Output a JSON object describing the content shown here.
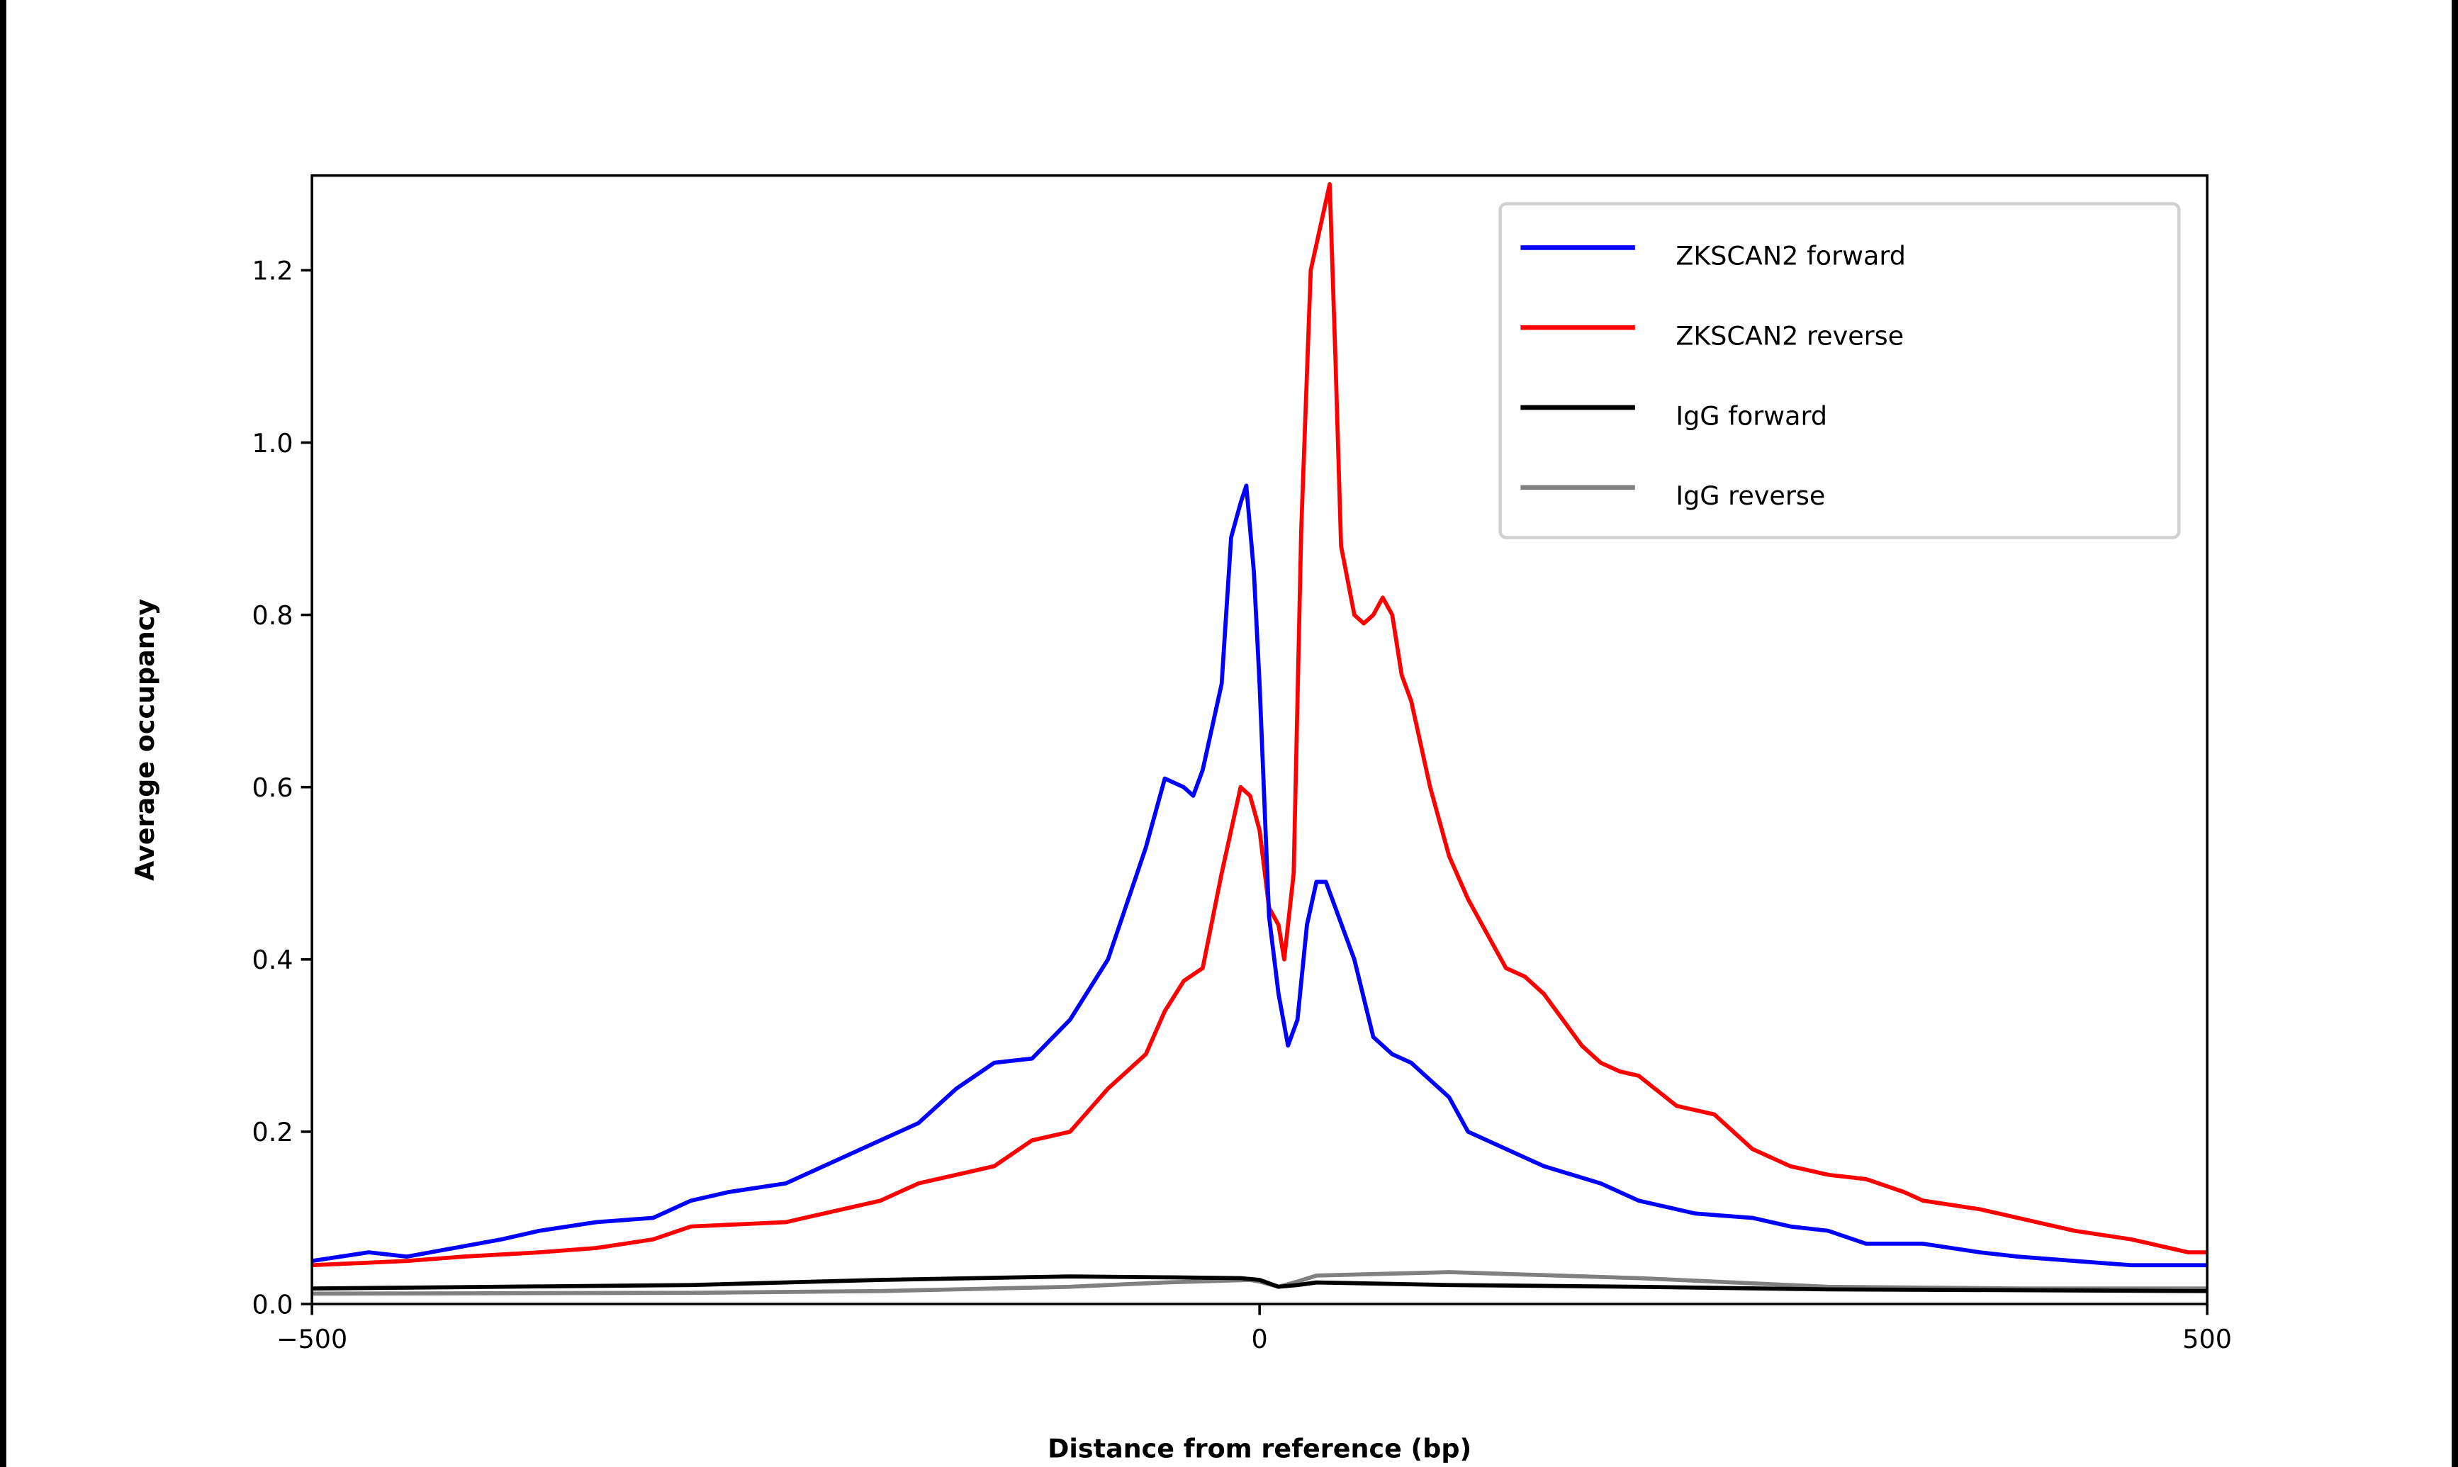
{
  "chart_data": {
    "type": "line",
    "title": "",
    "xlabel": "Distance from reference (bp)",
    "ylabel": "Average occupancy",
    "xlim": [
      -500,
      500
    ],
    "ylim": [
      0,
      1.31
    ],
    "xticks": [
      -500,
      0,
      500
    ],
    "xtick_labels": [
      "−500",
      "0",
      "500"
    ],
    "yticks": [
      0,
      0.2,
      0.4,
      0.6,
      0.8,
      1.0,
      1.2
    ],
    "ytick_labels": [
      "0.0",
      "0.2",
      "0.4",
      "0.6",
      "0.8",
      "1.0",
      "1.2"
    ],
    "grid": false,
    "legend_position": "top-right",
    "series": [
      {
        "name": "ZKSCAN2 forward",
        "color": "#0000ff",
        "x": [
          -500,
          -470,
          -450,
          -420,
          -400,
          -380,
          -350,
          -320,
          -300,
          -280,
          -250,
          -230,
          -200,
          -180,
          -160,
          -140,
          -120,
          -100,
          -80,
          -60,
          -50,
          -40,
          -35,
          -30,
          -20,
          -15,
          -10,
          -7,
          -3,
          0,
          5,
          10,
          15,
          20,
          25,
          30,
          35,
          40,
          50,
          60,
          70,
          80,
          100,
          110,
          130,
          150,
          180,
          200,
          230,
          260,
          280,
          300,
          320,
          350,
          380,
          400,
          430,
          460,
          500
        ],
        "y": [
          0.05,
          0.06,
          0.055,
          0.067,
          0.075,
          0.085,
          0.095,
          0.1,
          0.12,
          0.13,
          0.14,
          0.16,
          0.19,
          0.21,
          0.25,
          0.28,
          0.285,
          0.33,
          0.4,
          0.53,
          0.61,
          0.6,
          0.59,
          0.62,
          0.72,
          0.89,
          0.93,
          0.95,
          0.85,
          0.72,
          0.45,
          0.36,
          0.3,
          0.33,
          0.44,
          0.49,
          0.49,
          0.46,
          0.4,
          0.31,
          0.29,
          0.28,
          0.24,
          0.2,
          0.18,
          0.16,
          0.14,
          0.12,
          0.105,
          0.1,
          0.09,
          0.085,
          0.07,
          0.07,
          0.06,
          0.055,
          0.05,
          0.045,
          0.045
        ]
      },
      {
        "name": "ZKSCAN2 reverse",
        "color": "#ff0000",
        "x": [
          -500,
          -450,
          -420,
          -380,
          -350,
          -320,
          -300,
          -250,
          -220,
          -200,
          -180,
          -160,
          -140,
          -120,
          -100,
          -80,
          -60,
          -50,
          -40,
          -30,
          -20,
          -10,
          -5,
          0,
          5,
          10,
          13,
          18,
          22,
          27,
          32,
          37,
          40,
          43,
          50,
          55,
          60,
          65,
          70,
          75,
          80,
          90,
          100,
          110,
          120,
          130,
          140,
          150,
          160,
          170,
          180,
          190,
          200,
          220,
          240,
          260,
          280,
          300,
          320,
          340,
          350,
          380,
          400,
          430,
          460,
          490,
          500
        ],
        "y": [
          0.045,
          0.05,
          0.055,
          0.06,
          0.065,
          0.075,
          0.09,
          0.095,
          0.11,
          0.12,
          0.14,
          0.15,
          0.16,
          0.19,
          0.2,
          0.25,
          0.29,
          0.34,
          0.375,
          0.39,
          0.5,
          0.6,
          0.59,
          0.55,
          0.46,
          0.44,
          0.4,
          0.5,
          0.9,
          1.2,
          1.25,
          1.3,
          1.1,
          0.88,
          0.8,
          0.79,
          0.8,
          0.82,
          0.8,
          0.73,
          0.7,
          0.6,
          0.52,
          0.47,
          0.43,
          0.39,
          0.38,
          0.36,
          0.33,
          0.3,
          0.28,
          0.27,
          0.265,
          0.23,
          0.22,
          0.18,
          0.16,
          0.15,
          0.145,
          0.13,
          0.12,
          0.11,
          0.1,
          0.085,
          0.075,
          0.06,
          0.06
        ]
      },
      {
        "name": "IgG forward",
        "color": "#000000",
        "x": [
          -500,
          -300,
          -200,
          -100,
          -50,
          -10,
          0,
          10,
          20,
          30,
          100,
          200,
          300,
          400,
          500
        ],
        "y": [
          0.018,
          0.022,
          0.028,
          0.032,
          0.031,
          0.03,
          0.028,
          0.02,
          0.022,
          0.025,
          0.022,
          0.02,
          0.017,
          0.016,
          0.015
        ]
      },
      {
        "name": "IgG reverse",
        "color": "#808080",
        "x": [
          -500,
          -300,
          -200,
          -100,
          -50,
          -5,
          0,
          10,
          20,
          30,
          100,
          200,
          300,
          400,
          500
        ],
        "y": [
          0.012,
          0.013,
          0.015,
          0.02,
          0.025,
          0.028,
          0.026,
          0.02,
          0.026,
          0.033,
          0.037,
          0.03,
          0.02,
          0.018,
          0.018
        ]
      }
    ]
  }
}
